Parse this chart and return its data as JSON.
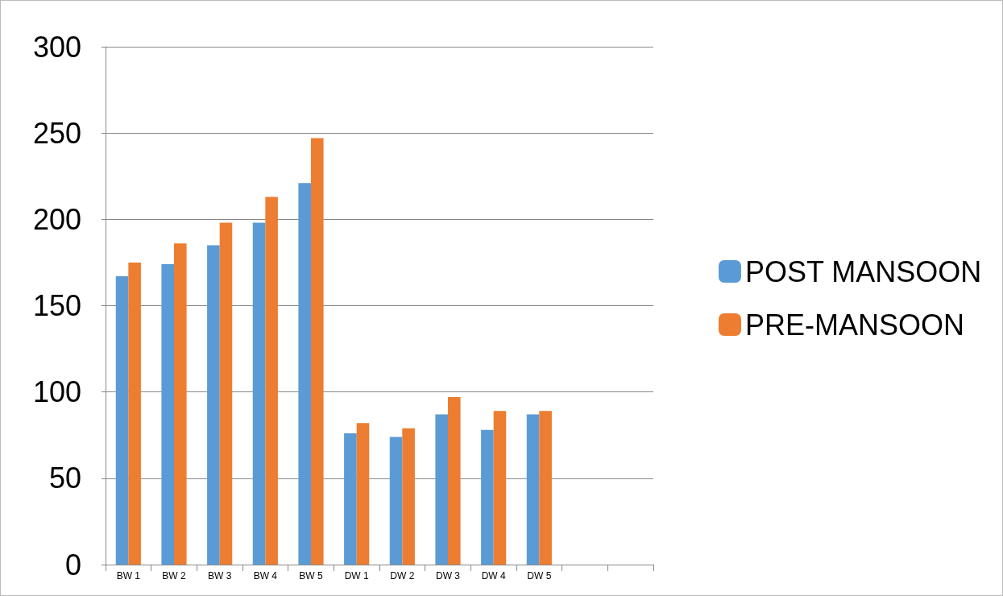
{
  "chart_data": {
    "type": "bar",
    "categories": [
      "BW 1",
      "BW 2",
      "BW 3",
      "BW 4",
      "BW 5",
      "DW 1",
      "DW 2",
      "DW 3",
      "DW 4",
      "DW 5",
      null,
      null
    ],
    "series": [
      {
        "name": "POST MANSOON",
        "color": "#5b9bd5",
        "values": [
          167,
          174,
          185,
          198,
          221,
          76,
          74,
          87,
          78,
          87,
          null,
          null
        ]
      },
      {
        "name": "PRE-MANSOON",
        "color": "#ed7d31",
        "values": [
          175,
          186,
          198,
          213,
          247,
          82,
          79,
          97,
          89,
          89,
          null,
          null
        ]
      }
    ],
    "ylim": [
      0,
      300
    ],
    "yticks": [
      0,
      50,
      100,
      150,
      200,
      250,
      300
    ],
    "grid": "y",
    "legend": "right"
  }
}
